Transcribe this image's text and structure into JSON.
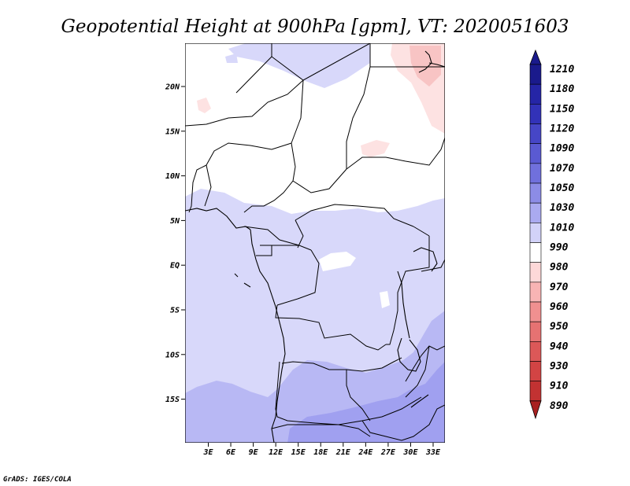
{
  "title": "Geopotential Height at 900hPa [gpm], VT: 2020051603",
  "credit": "GrADS: IGES/COLA",
  "lat_ticks": [
    "20N",
    "15N",
    "10N",
    "5N",
    "EQ",
    "5S",
    "10S",
    "15S"
  ],
  "lon_ticks": [
    "3E",
    "6E",
    "9E",
    "12E",
    "15E",
    "18E",
    "21E",
    "24E",
    "27E",
    "30E",
    "33E"
  ],
  "colorbar": {
    "levels": [
      "1210",
      "1180",
      "1150",
      "1120",
      "1090",
      "1070",
      "1050",
      "1030",
      "1010",
      "990",
      "980",
      "970",
      "960",
      "950",
      "940",
      "930",
      "910",
      "890"
    ],
    "colors": [
      "#1a1a8c",
      "#2525a6",
      "#3232b8",
      "#4646c6",
      "#5a5ad2",
      "#7070dc",
      "#8c8ce6",
      "#aaaaf0",
      "#d2d2f8",
      "#ffffff",
      "#fdd8d8",
      "#f8b4b4",
      "#f09090",
      "#e67272",
      "#dc5858",
      "#d24444",
      "#c23232",
      "#a82020"
    ]
  },
  "colors": {
    "band_1010": "#d8d8fa",
    "band_1030": "#b8b8f4",
    "band_1050": "#a0a0f0",
    "band_990": "#fde2e2",
    "band_980": "#f8c4c4"
  }
}
